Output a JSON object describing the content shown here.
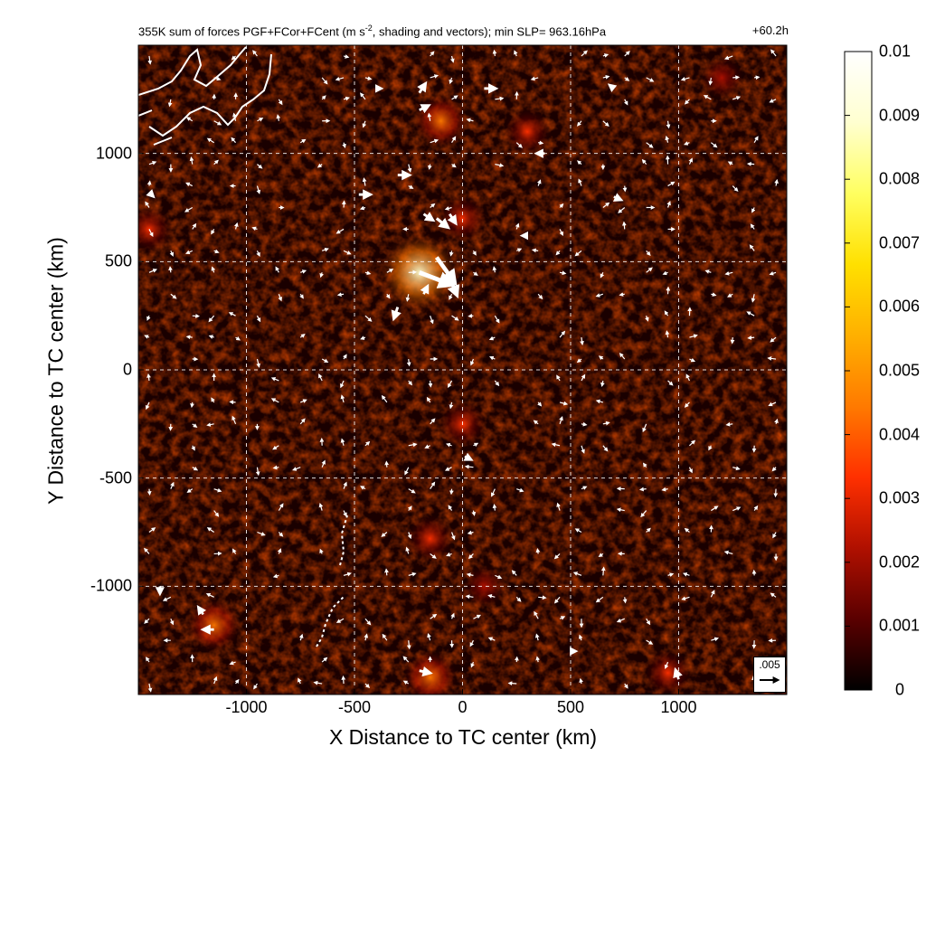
{
  "title": {
    "main_prefix": "355K sum of forces PGF+FCor+FCent (m s",
    "main_sup": "-2",
    "main_suffix": ", shading and vectors); min SLP= 963.16hPa",
    "time": "+60.2h"
  },
  "chart_data": {
    "type": "heatmap",
    "overlay": "vector field (force arrows)",
    "xlabel": "X Distance to TC center (km)",
    "ylabel": "Y Distance to TC center (km)",
    "xlim": [
      -1500,
      1500
    ],
    "ylim": [
      -1500,
      1500
    ],
    "x_ticks": [
      "-1000",
      "-500",
      "0",
      "500",
      "1000"
    ],
    "y_ticks": [
      "1000",
      "500",
      "0",
      "-500",
      "-1000"
    ],
    "grid": "dashed white, every 500 km",
    "colorbar": {
      "min": 0,
      "max": 0.01,
      "ticks": [
        "0.01",
        "0.009",
        "0.008",
        "0.007",
        "0.006",
        "0.005",
        "0.004",
        "0.003",
        "0.002",
        "0.001",
        "0"
      ],
      "colors": [
        "#000000",
        "#5a0000",
        "#b01000",
        "#ff3000",
        "#ff7a00",
        "#ffb000",
        "#ffe000",
        "#ffff60",
        "#ffffd0",
        "#ffffff"
      ]
    },
    "reference_vector": {
      "label": ".005",
      "value": 0.005
    },
    "field_hotspots": [
      {
        "x": -200,
        "y": 450,
        "intensity": 0.009
      },
      {
        "x": -100,
        "y": 1150,
        "intensity": 0.004
      },
      {
        "x": 0,
        "y": 700,
        "intensity": 0.003
      },
      {
        "x": 300,
        "y": 1100,
        "intensity": 0.003
      },
      {
        "x": 0,
        "y": -250,
        "intensity": 0.003
      },
      {
        "x": -150,
        "y": -780,
        "intensity": 0.003
      },
      {
        "x": -1150,
        "y": -1180,
        "intensity": 0.004
      },
      {
        "x": -150,
        "y": -1420,
        "intensity": 0.004
      },
      {
        "x": 950,
        "y": -1400,
        "intensity": 0.003
      },
      {
        "x": -1450,
        "y": 650,
        "intensity": 0.003
      },
      {
        "x": 1200,
        "y": 1350,
        "intensity": 0.002
      },
      {
        "x": 100,
        "y": -1000,
        "intensity": 0.002
      }
    ],
    "vectors": [
      {
        "x": -200,
        "y": 450,
        "u": 0.0045,
        "v": -0.0017
      },
      {
        "x": -120,
        "y": 520,
        "u": 0.0025,
        "v": -0.0035
      },
      {
        "x": -60,
        "y": 430,
        "u": 0.001,
        "v": -0.0025
      },
      {
        "x": -300,
        "y": 290,
        "u": -0.0005,
        "v": -0.0015
      },
      {
        "x": -180,
        "y": 350,
        "u": 0.0005,
        "v": 0.001
      },
      {
        "x": -120,
        "y": 700,
        "u": 0.0015,
        "v": -0.0012
      },
      {
        "x": -180,
        "y": 720,
        "u": 0.0012,
        "v": -0.0008
      },
      {
        "x": -60,
        "y": 720,
        "u": 0.0008,
        "v": -0.0012
      },
      {
        "x": -200,
        "y": 1280,
        "u": 0.0008,
        "v": 0.0012
      },
      {
        "x": -200,
        "y": 1200,
        "u": 0.0012,
        "v": 0.0006
      },
      {
        "x": 100,
        "y": 1300,
        "u": 0.0015,
        "v": 0
      },
      {
        "x": -300,
        "y": 900,
        "u": 0.0015,
        "v": 0
      },
      {
        "x": -480,
        "y": 810,
        "u": 0.0015,
        "v": 0
      },
      {
        "x": 380,
        "y": 1000,
        "u": -0.001,
        "v": 0
      },
      {
        "x": 700,
        "y": 800,
        "u": 0.0009,
        "v": -0.0004
      },
      {
        "x": 300,
        "y": 620,
        "u": -0.0006,
        "v": 0
      },
      {
        "x": -1150,
        "y": -1200,
        "u": -0.0014,
        "v": 0
      },
      {
        "x": -1200,
        "y": -1130,
        "u": -0.0006,
        "v": 0.0009
      },
      {
        "x": -1400,
        "y": -1000,
        "u": 0,
        "v": -0.0009
      },
      {
        "x": -200,
        "y": -1390,
        "u": 0.0014,
        "v": -0.0003
      },
      {
        "x": 1000,
        "y": -1430,
        "u": -0.0004,
        "v": 0.0012
      },
      {
        "x": 10,
        "y": -400,
        "u": 0.0008,
        "v": -0.0004
      },
      {
        "x": 500,
        "y": -1300,
        "u": 0.0006,
        "v": 0
      },
      {
        "x": -400,
        "y": 1300,
        "u": 0.0006,
        "v": 0
      },
      {
        "x": 700,
        "y": 1300,
        "u": -0.0005,
        "v": 0.0004
      },
      {
        "x": -1450,
        "y": 820,
        "u": 0.0005,
        "v": -0.0005
      }
    ]
  }
}
